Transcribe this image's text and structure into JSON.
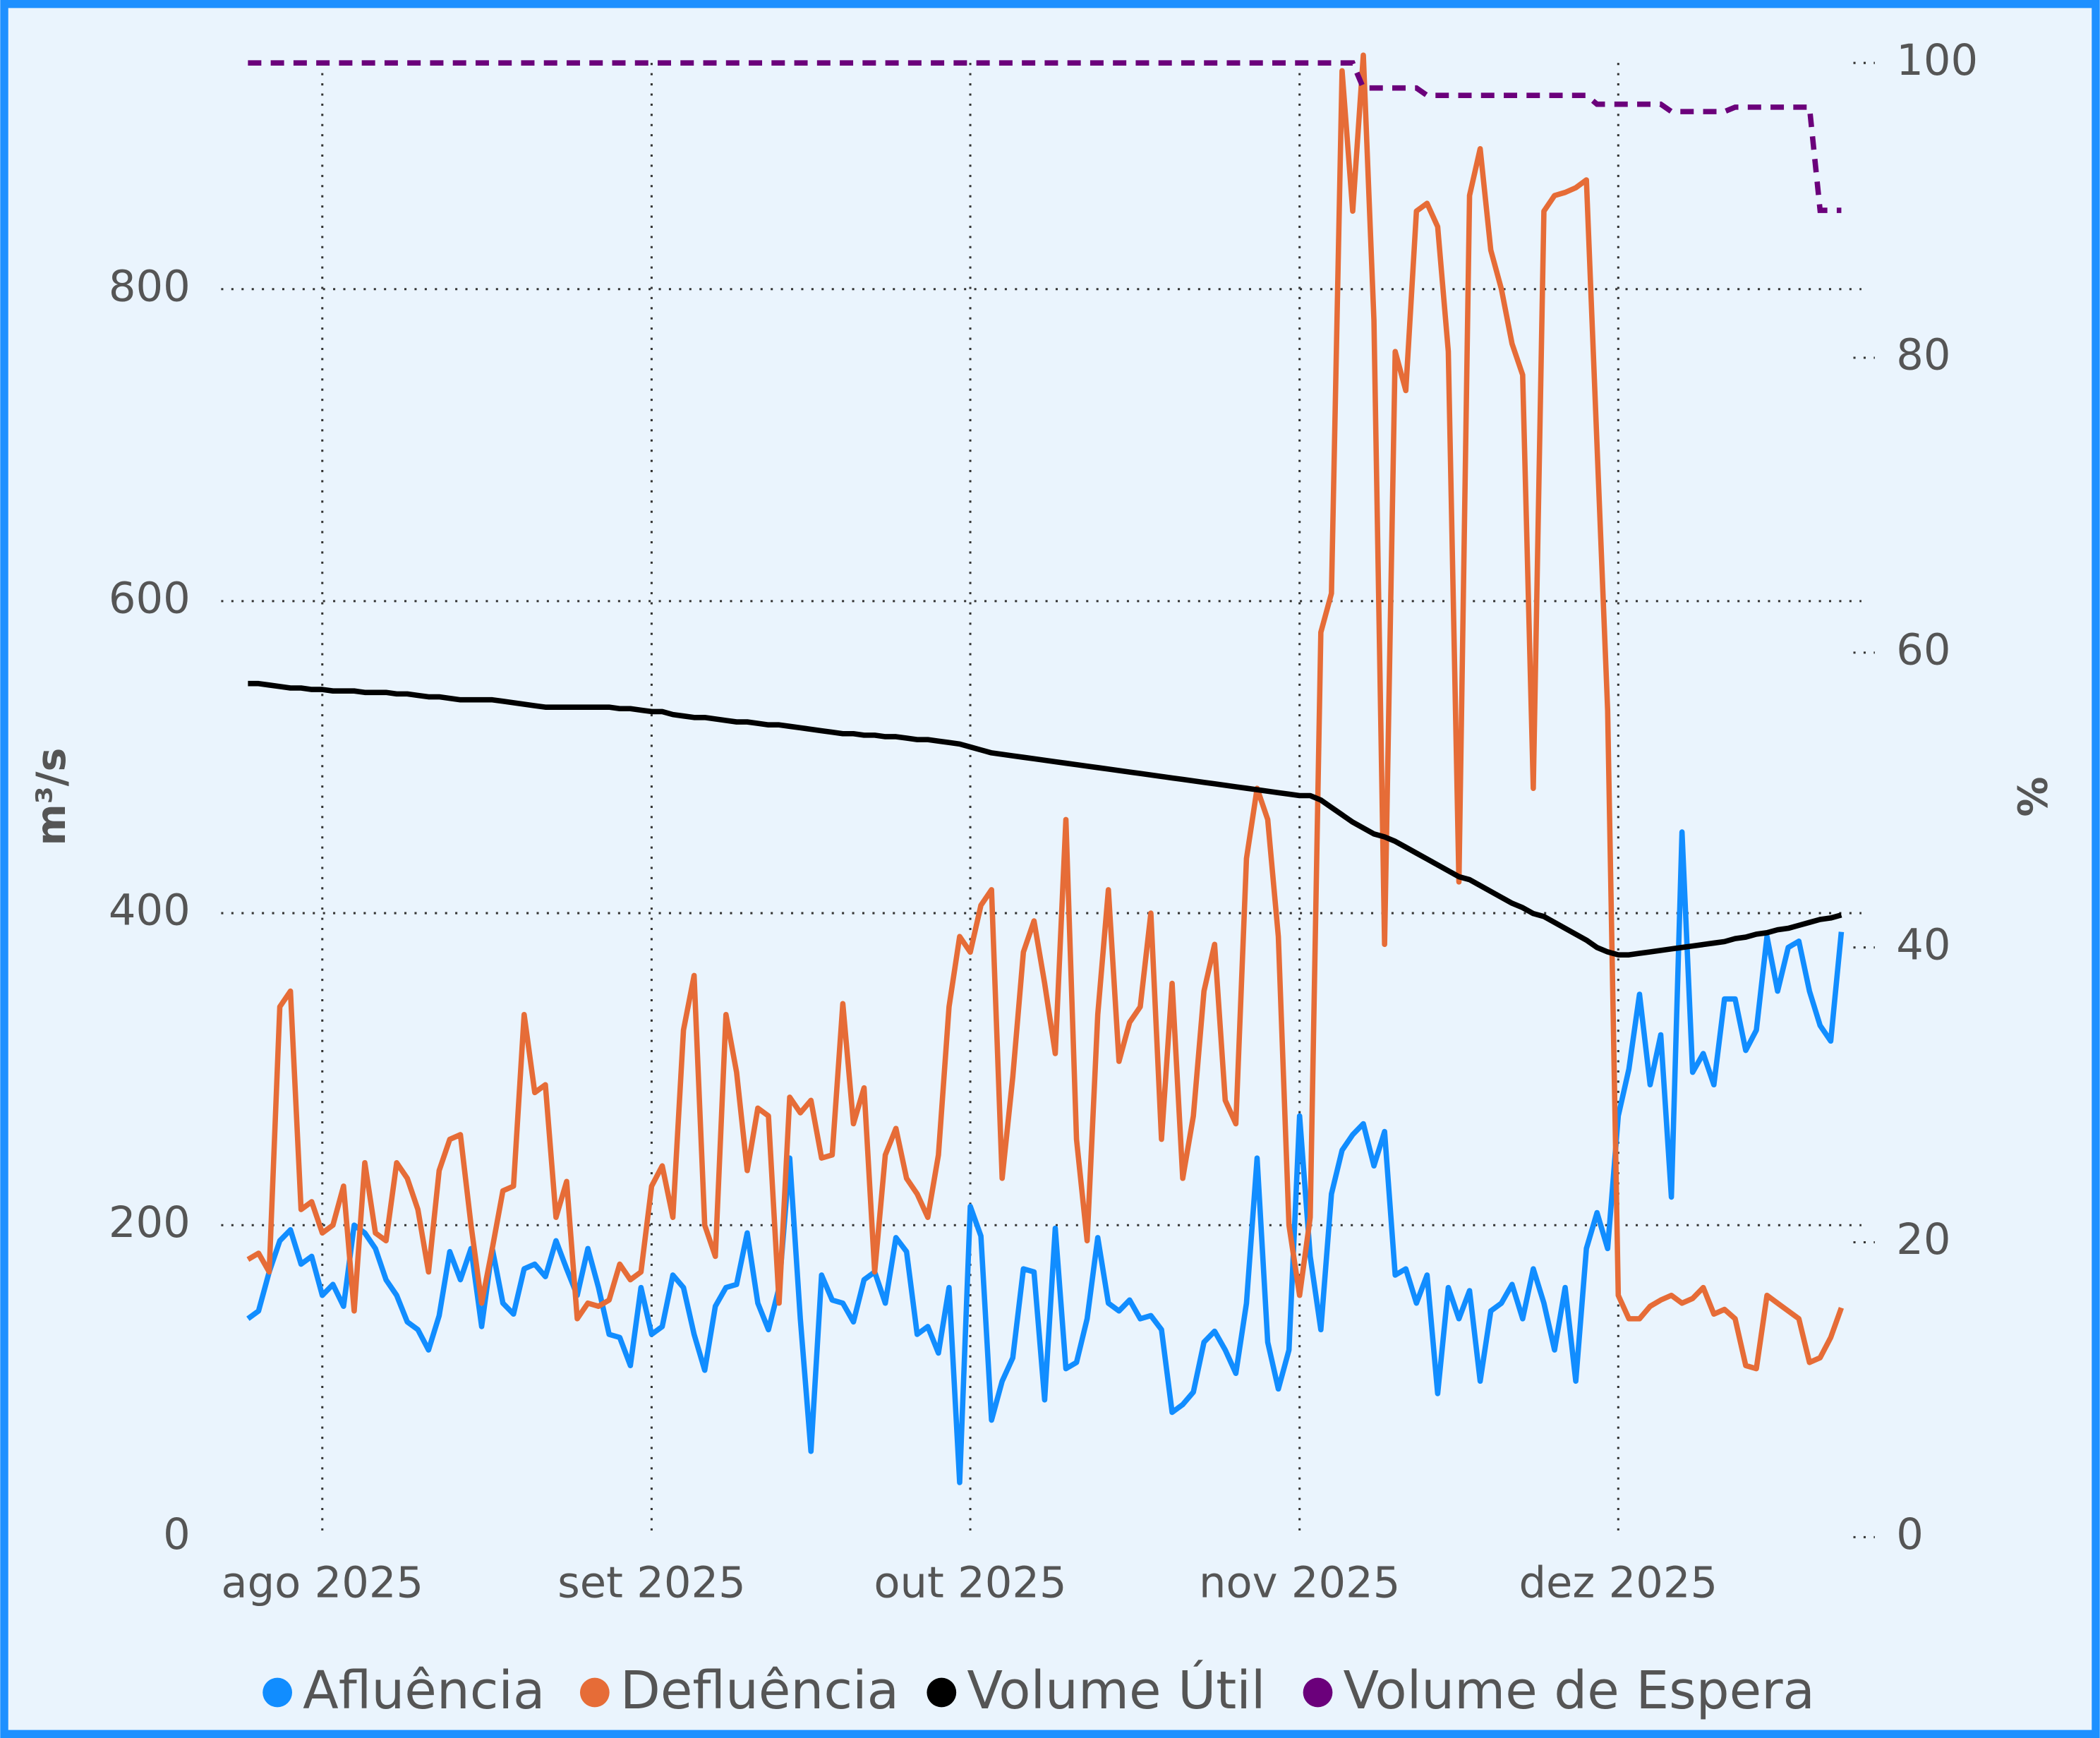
{
  "chart_data": {
    "type": "line",
    "x": [
      "2025-07-25",
      "2025-07-26",
      "2025-07-27",
      "2025-07-28",
      "2025-07-29",
      "2025-07-30",
      "2025-07-31",
      "2025-08-01",
      "2025-08-02",
      "2025-08-03",
      "2025-08-04",
      "2025-08-05",
      "2025-08-06",
      "2025-08-07",
      "2025-08-08",
      "2025-08-09",
      "2025-08-10",
      "2025-08-11",
      "2025-08-12",
      "2025-08-13",
      "2025-08-14",
      "2025-08-15",
      "2025-08-16",
      "2025-08-17",
      "2025-08-18",
      "2025-08-19",
      "2025-08-20",
      "2025-08-21",
      "2025-08-22",
      "2025-08-23",
      "2025-08-24",
      "2025-08-25",
      "2025-08-26",
      "2025-08-27",
      "2025-08-28",
      "2025-08-29",
      "2025-08-30",
      "2025-08-31",
      "2025-09-01",
      "2025-09-02",
      "2025-09-03",
      "2025-09-04",
      "2025-09-05",
      "2025-09-06",
      "2025-09-07",
      "2025-09-08",
      "2025-09-09",
      "2025-09-10",
      "2025-09-11",
      "2025-09-12",
      "2025-09-13",
      "2025-09-14",
      "2025-09-15",
      "2025-09-16",
      "2025-09-17",
      "2025-09-18",
      "2025-09-19",
      "2025-09-20",
      "2025-09-21",
      "2025-09-22",
      "2025-09-23",
      "2025-09-24",
      "2025-09-25",
      "2025-09-26",
      "2025-09-27",
      "2025-09-28",
      "2025-09-29",
      "2025-09-30",
      "2025-10-01",
      "2025-10-02",
      "2025-10-03",
      "2025-10-04",
      "2025-10-05",
      "2025-10-06",
      "2025-10-07",
      "2025-10-08",
      "2025-10-09",
      "2025-10-10",
      "2025-10-11",
      "2025-10-12",
      "2025-10-13",
      "2025-10-14",
      "2025-10-15",
      "2025-10-16",
      "2025-10-17",
      "2025-10-18",
      "2025-10-19",
      "2025-10-20",
      "2025-10-21",
      "2025-10-22",
      "2025-10-23",
      "2025-10-24",
      "2025-10-25",
      "2025-10-26",
      "2025-10-27",
      "2025-10-28",
      "2025-10-29",
      "2025-10-30",
      "2025-10-31",
      "2025-11-01",
      "2025-11-02",
      "2025-11-03",
      "2025-11-04",
      "2025-11-05",
      "2025-11-06",
      "2025-11-07",
      "2025-11-08",
      "2025-11-09",
      "2025-11-10",
      "2025-11-11",
      "2025-11-12",
      "2025-11-13",
      "2025-11-14",
      "2025-11-15",
      "2025-11-16",
      "2025-11-17",
      "2025-11-18",
      "2025-11-19",
      "2025-11-20",
      "2025-11-21",
      "2025-11-22",
      "2025-11-23",
      "2025-11-24",
      "2025-11-25",
      "2025-11-26",
      "2025-11-27",
      "2025-11-28",
      "2025-11-29",
      "2025-11-30",
      "2025-12-01",
      "2025-12-02",
      "2025-12-03",
      "2025-12-04",
      "2025-12-05",
      "2025-12-06",
      "2025-12-07",
      "2025-12-08",
      "2025-12-09",
      "2025-12-10",
      "2025-12-11",
      "2025-12-12",
      "2025-12-13",
      "2025-12-14",
      "2025-12-15",
      "2025-12-16",
      "2025-12-17",
      "2025-12-18",
      "2025-12-19",
      "2025-12-20",
      "2025-12-21",
      "2025-12-22"
    ],
    "series": [
      {
        "name": "Afluência",
        "color": "#118dff",
        "axis": "y",
        "dashed": false,
        "values": [
          140,
          145,
          170,
          190,
          197,
          175,
          180,
          155,
          162,
          148,
          200,
          195,
          185,
          165,
          155,
          138,
          133,
          120,
          142,
          183,
          165,
          185,
          135,
          185,
          150,
          143,
          172,
          175,
          167,
          190,
          172,
          155,
          185,
          160,
          130,
          128,
          110,
          160,
          130,
          135,
          168,
          160,
          130,
          107,
          148,
          160,
          162,
          195,
          150,
          133,
          160,
          243,
          140,
          55,
          168,
          152,
          150,
          138,
          165,
          170,
          150,
          192,
          183,
          130,
          135,
          118,
          160,
          35,
          212,
          193,
          75,
          100,
          115,
          172,
          170,
          88,
          198,
          108,
          112,
          140,
          192,
          150,
          145,
          152,
          140,
          142,
          133,
          80,
          85,
          93,
          125,
          132,
          120,
          105,
          150,
          243,
          125,
          95,
          120,
          270,
          180,
          133,
          220,
          248,
          258,
          265,
          238,
          260,
          168,
          172,
          150,
          168,
          92,
          160,
          140,
          158,
          100,
          145,
          150,
          162,
          140,
          172,
          150,
          120,
          160,
          100,
          185,
          208,
          185,
          270,
          300,
          348,
          290,
          322,
          218,
          452,
          298,
          310,
          290,
          345,
          345,
          312,
          325,
          385,
          350,
          378,
          382,
          350,
          328,
          318,
          388
        ]
      },
      {
        "name": "Defluência",
        "color": "#e66c37",
        "axis": "y",
        "dashed": false,
        "values": [
          178,
          182,
          170,
          340,
          350,
          210,
          215,
          195,
          200,
          225,
          145,
          240,
          195,
          190,
          240,
          230,
          210,
          170,
          235,
          255,
          258,
          200,
          150,
          185,
          222,
          225,
          335,
          285,
          290,
          205,
          228,
          140,
          150,
          148,
          152,
          175,
          165,
          170,
          225,
          238,
          205,
          325,
          360,
          200,
          180,
          335,
          298,
          235,
          275,
          270,
          150,
          282,
          272,
          280,
          243,
          245,
          342,
          265,
          288,
          170,
          245,
          262,
          230,
          220,
          205,
          245,
          340,
          385,
          375,
          405,
          415,
          230,
          295,
          375,
          395,
          355,
          310,
          460,
          255,
          190,
          335,
          415,
          305,
          330,
          340,
          400,
          255,
          355,
          230,
          270,
          350,
          380,
          280,
          265,
          435,
          480,
          460,
          385,
          200,
          155,
          205,
          580,
          605,
          940,
          850,
          950,
          780,
          380,
          760,
          735,
          850,
          855,
          840,
          760,
          420,
          860,
          890,
          825,
          800,
          765,
          745,
          480,
          850,
          860,
          862,
          865,
          870,
          700,
          530,
          155,
          140,
          140,
          148,
          152,
          155,
          150,
          153,
          160,
          143,
          146,
          140,
          110,
          108,
          155,
          150,
          145,
          140,
          112,
          115,
          128,
          147
        ]
      },
      {
        "name": "Volume Útil",
        "color": "#000000",
        "axis": "y2",
        "dashed": false,
        "values": [
          57.9,
          57.9,
          57.8,
          57.7,
          57.6,
          57.6,
          57.5,
          57.5,
          57.4,
          57.4,
          57.4,
          57.3,
          57.3,
          57.3,
          57.2,
          57.2,
          57.1,
          57.0,
          57.0,
          56.9,
          56.8,
          56.8,
          56.8,
          56.8,
          56.7,
          56.6,
          56.5,
          56.4,
          56.3,
          56.3,
          56.3,
          56.3,
          56.3,
          56.3,
          56.3,
          56.2,
          56.2,
          56.1,
          56.0,
          56.0,
          55.8,
          55.7,
          55.6,
          55.6,
          55.5,
          55.4,
          55.3,
          55.3,
          55.2,
          55.1,
          55.1,
          55.0,
          54.9,
          54.8,
          54.7,
          54.6,
          54.5,
          54.5,
          54.4,
          54.4,
          54.3,
          54.3,
          54.2,
          54.1,
          54.1,
          54.0,
          53.9,
          53.8,
          53.6,
          53.4,
          53.2,
          53.1,
          53.0,
          52.9,
          52.8,
          52.7,
          52.6,
          52.5,
          52.4,
          52.3,
          52.2,
          52.1,
          52.0,
          51.9,
          51.8,
          51.7,
          51.6,
          51.5,
          51.4,
          51.3,
          51.2,
          51.1,
          51.0,
          50.9,
          50.8,
          50.7,
          50.6,
          50.5,
          50.4,
          50.3,
          50.3,
          50.0,
          49.5,
          49.0,
          48.5,
          48.1,
          47.7,
          47.5,
          47.2,
          46.8,
          46.4,
          46.0,
          45.6,
          45.2,
          44.8,
          44.6,
          44.2,
          43.8,
          43.4,
          43.0,
          42.7,
          42.3,
          42.1,
          41.7,
          41.3,
          40.9,
          40.5,
          40.0,
          39.7,
          39.5,
          39.5,
          39.6,
          39.7,
          39.8,
          39.9,
          40.0,
          40.1,
          40.2,
          40.3,
          40.4,
          40.6,
          40.7,
          40.9,
          41.0,
          41.2,
          41.3,
          41.5,
          41.7,
          41.9,
          42.0,
          42.2
        ]
      },
      {
        "name": "Volume de Espera",
        "color": "#6b007b",
        "axis": "y2",
        "dashed": true,
        "values": [
          100,
          100,
          100,
          100,
          100,
          100,
          100,
          100,
          100,
          100,
          100,
          100,
          100,
          100,
          100,
          100,
          100,
          100,
          100,
          100,
          100,
          100,
          100,
          100,
          100,
          100,
          100,
          100,
          100,
          100,
          100,
          100,
          100,
          100,
          100,
          100,
          100,
          100,
          100,
          100,
          100,
          100,
          100,
          100,
          100,
          100,
          100,
          100,
          100,
          100,
          100,
          100,
          100,
          100,
          100,
          100,
          100,
          100,
          100,
          100,
          100,
          100,
          100,
          100,
          100,
          100,
          100,
          100,
          100,
          100,
          100,
          100,
          100,
          100,
          100,
          100,
          100,
          100,
          100,
          100,
          100,
          100,
          100,
          100,
          100,
          100,
          100,
          100,
          100,
          100,
          100,
          100,
          100,
          100,
          100,
          100,
          100,
          100,
          100,
          100,
          100,
          100,
          100,
          100,
          100,
          98.3,
          98.3,
          98.3,
          98.3,
          98.3,
          98.3,
          97.8,
          97.8,
          97.8,
          97.8,
          97.8,
          97.8,
          97.8,
          97.8,
          97.8,
          97.8,
          97.8,
          97.8,
          97.8,
          97.8,
          97.8,
          97.8,
          97.2,
          97.2,
          97.2,
          97.2,
          97.2,
          97.2,
          97.2,
          96.7,
          96.7,
          96.7,
          96.7,
          96.7,
          96.7,
          97,
          97,
          97,
          97,
          97,
          97,
          97,
          97,
          90,
          90,
          90
        ]
      }
    ],
    "xlim": [
      "2025-07-25",
      "2025-12-22"
    ],
    "xticks": [
      {
        "value": "2025-08-01",
        "label": "ago 2025"
      },
      {
        "value": "2025-09-01",
        "label": "set 2025"
      },
      {
        "value": "2025-10-01",
        "label": "out 2025"
      },
      {
        "value": "2025-11-01",
        "label": "nov 2025"
      },
      {
        "value": "2025-12-01",
        "label": "dez 2025"
      }
    ],
    "ylim": [
      0,
      945
    ],
    "yticks": [
      0,
      200,
      400,
      600,
      800
    ],
    "y2lim": [
      0,
      100
    ],
    "y2ticks": [
      0,
      20,
      40,
      60,
      80,
      100
    ],
    "ylabel": "m³/s",
    "y2label": "%",
    "grid": true,
    "legend": "bottom"
  }
}
